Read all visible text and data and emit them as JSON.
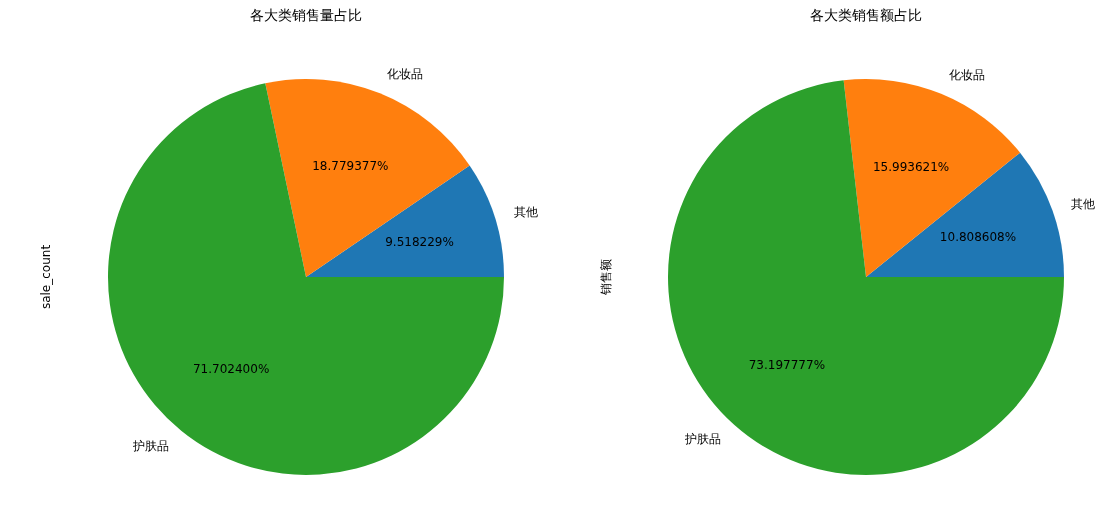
{
  "chart_data": [
    {
      "type": "pie",
      "title": "各大类销售量占比",
      "ylabel": "sale_count",
      "categories": [
        "其他",
        "化妆品",
        "护肤品"
      ],
      "values": [
        9.518229,
        18.779377,
        71.7024
      ],
      "colors": [
        "#1f77b4",
        "#ff7f0e",
        "#2ca02c"
      ],
      "value_labels": [
        "9.518229%",
        "18.779377%",
        "71.702400%"
      ]
    },
    {
      "type": "pie",
      "title": "各大类销售额占比",
      "ylabel": "销售额",
      "categories": [
        "其他",
        "化妆品",
        "护肤品"
      ],
      "values": [
        10.808608,
        15.993621,
        73.197777
      ],
      "colors": [
        "#1f77b4",
        "#ff7f0e",
        "#2ca02c"
      ],
      "value_labels": [
        "10.808608%",
        "15.993621%",
        "73.197777%"
      ]
    }
  ]
}
